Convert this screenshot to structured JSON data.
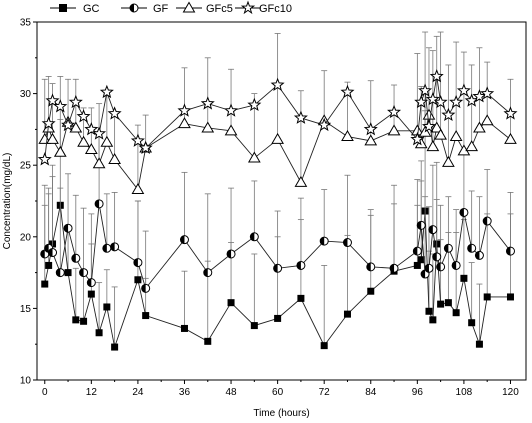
{
  "chart_data": {
    "type": "line",
    "xlabel": "Time (hours)",
    "ylabel": "Concentration(mg/dL)",
    "xlim": [
      -2,
      124
    ],
    "ylim": [
      10,
      35
    ],
    "xticks": [
      0,
      12,
      24,
      36,
      48,
      60,
      72,
      84,
      96,
      108,
      120
    ],
    "yticks": [
      10,
      15,
      20,
      25,
      30,
      35
    ],
    "x_tick_labels": [
      "0",
      "12",
      "24",
      "36",
      "48",
      "60",
      "72",
      "84",
      "96",
      "108",
      "120"
    ],
    "y_tick_labels": [
      "10",
      "15",
      "20",
      "25",
      "30",
      "35"
    ],
    "legend_position": "top",
    "grid": false,
    "series": [
      {
        "name": "GC",
        "marker": "square-filled",
        "x": [
          0,
          1,
          2,
          4,
          6,
          8,
          10,
          12,
          14,
          16,
          18,
          24,
          26,
          36,
          42,
          48,
          54,
          60,
          66,
          72,
          78,
          84,
          90,
          96,
          97,
          98,
          99,
          100,
          101,
          102,
          104,
          106,
          108,
          110,
          112,
          114,
          120
        ],
        "y": [
          16.7,
          18.0,
          19.5,
          22.2,
          17.5,
          14.2,
          14.1,
          16.0,
          13.3,
          15.1,
          12.3,
          17.0,
          14.5,
          13.6,
          12.7,
          15.4,
          13.8,
          14.3,
          15.7,
          12.4,
          14.6,
          16.2,
          17.6,
          18.0,
          18.4,
          21.8,
          14.8,
          14.2,
          19.5,
          15.3,
          15.4,
          14.7,
          17.1,
          14.0,
          12.5,
          15.8,
          15.8
        ],
        "err_high": [
          5.5,
          5.0,
          5.5,
          6.0,
          3.2,
          3.6,
          3.5,
          3.5,
          3.5,
          2.6,
          4.2,
          5.5,
          2.6,
          4.0,
          5.6,
          4.2,
          5.0,
          5.7,
          5.5,
          5.6,
          5.5,
          5.3,
          6.0,
          6.0,
          5.5,
          7.0,
          4.2,
          4.6,
          5.7,
          4.5,
          4.9,
          5.6,
          4.1,
          4.2,
          4.2,
          5.8,
          5.8
        ]
      },
      {
        "name": "GF",
        "marker": "circle-half",
        "x": [
          0,
          1,
          2,
          4,
          6,
          8,
          10,
          12,
          14,
          16,
          18,
          24,
          26,
          36,
          42,
          48,
          54,
          60,
          66,
          72,
          78,
          84,
          90,
          96,
          97,
          98,
          99,
          100,
          101,
          102,
          104,
          106,
          108,
          110,
          112,
          114,
          120
        ],
        "y": [
          18.8,
          19.2,
          18.9,
          17.5,
          20.6,
          18.5,
          17.5,
          16.8,
          22.3,
          19.2,
          19.3,
          18.2,
          16.4,
          19.8,
          17.5,
          18.8,
          20.0,
          17.8,
          18.0,
          19.7,
          19.6,
          17.9,
          17.8,
          19.0,
          20.8,
          17.4,
          17.8,
          20.5,
          18.6,
          17.9,
          19.2,
          18.0,
          21.7,
          19.2,
          18.7,
          21.1,
          19.0
        ],
        "err_high": [
          4.8,
          4.2,
          5.3,
          5.9,
          3.8,
          4.4,
          4.5,
          4.8,
          4.9,
          3.8,
          3.8,
          4.3,
          4.0,
          4.7,
          5.5,
          4.6,
          3.9,
          4.0,
          4.7,
          3.6,
          4.7,
          4.0,
          4.5,
          3.2,
          4.5,
          5.4,
          4.3,
          4.5,
          4.0,
          4.3,
          3.6,
          3.9,
          4.3,
          4.0,
          4.1,
          3.6,
          4.1
        ]
      },
      {
        "name": "GFc5",
        "marker": "triangle-open",
        "x": [
          0,
          1,
          2,
          4,
          6,
          8,
          10,
          12,
          14,
          16,
          18,
          24,
          26,
          36,
          42,
          48,
          54,
          60,
          66,
          72,
          78,
          84,
          90,
          96,
          97,
          98,
          99,
          100,
          101,
          102,
          104,
          106,
          108,
          110,
          112,
          114,
          120
        ],
        "y": [
          26.8,
          27.6,
          26.8,
          25.9,
          28.0,
          27.6,
          26.6,
          26.1,
          25.1,
          26.6,
          25.4,
          23.3,
          26.2,
          27.9,
          27.6,
          27.4,
          25.5,
          26.8,
          23.8,
          28.1,
          27.0,
          26.7,
          27.4,
          27.4,
          26.5,
          27.3,
          28.5,
          26.3,
          27.6,
          27.1,
          25.2,
          27.0,
          26.0,
          26.3,
          27.6,
          28.1,
          26.8
        ],
        "err_high": [
          4.2,
          3.6,
          3.9,
          5.3,
          3.0,
          3.4,
          2.4,
          2.9,
          4.2,
          3.4,
          3.1,
          4.5,
          2.3,
          3.9,
          4.9,
          4.3,
          4.5,
          7.4,
          6.4,
          3.5,
          3.8,
          4.2,
          3.2,
          5.4,
          4.0,
          7.0,
          4.7,
          6.7,
          6.4,
          7.2,
          6.8,
          6.6,
          6.9,
          5.7,
          5.6,
          4.1,
          4.2
        ]
      },
      {
        "name": "GFc10",
        "marker": "star-open",
        "x": [
          0,
          1,
          2,
          4,
          6,
          8,
          10,
          12,
          14,
          16,
          18,
          24,
          26,
          36,
          42,
          48,
          54,
          60,
          66,
          72,
          78,
          84,
          90,
          96,
          97,
          98,
          99,
          100,
          101,
          102,
          104,
          106,
          108,
          110,
          112,
          114,
          120
        ],
        "y": [
          25.4,
          27.9,
          29.5,
          29.1,
          27.8,
          29.4,
          28.4,
          27.5,
          27.2,
          30.1,
          28.6,
          26.7,
          26.2,
          28.8,
          29.3,
          28.8,
          29.2,
          30.6,
          28.3,
          27.8,
          30.1,
          27.5,
          28.7,
          26.8,
          29.4,
          30.2,
          27.7,
          29.6,
          31.2,
          29.4,
          28.5,
          29.4,
          30.2,
          29.5,
          29.8,
          30.0,
          28.6
        ]
      }
    ]
  }
}
